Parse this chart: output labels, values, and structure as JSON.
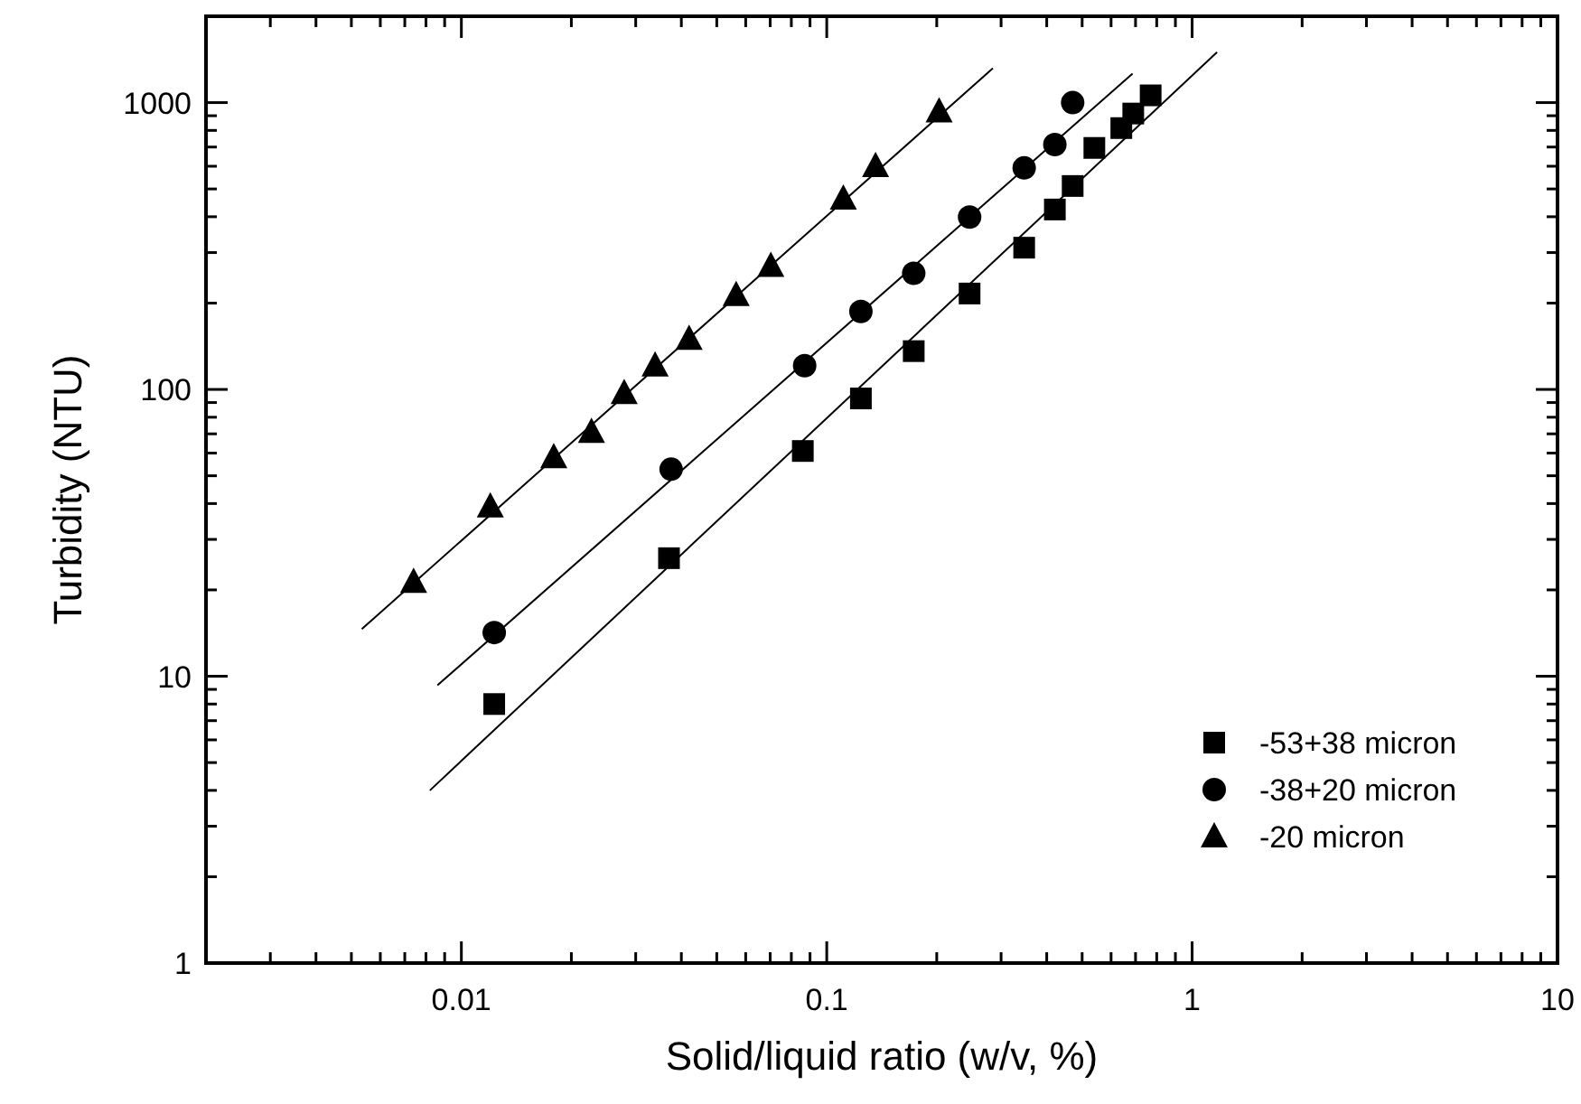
{
  "chart_data": {
    "type": "scatter",
    "xlabel": "Solid/liquid ratio (w/v, %)",
    "ylabel": "Turbidity (NTU)",
    "log": "xy",
    "grid": false,
    "legend": "bottom right",
    "xlim": [
      0.002,
      10
    ],
    "ylim": [
      1,
      2000
    ],
    "xticks": [
      {
        "value": 0.002,
        "label": null
      },
      {
        "value": 0.003,
        "label": null
      },
      {
        "value": 0.004,
        "label": null
      },
      {
        "value": 0.005,
        "label": null
      },
      {
        "value": 0.006,
        "label": null
      },
      {
        "value": 0.007,
        "label": null
      },
      {
        "value": 0.008,
        "label": null
      },
      {
        "value": 0.009,
        "label": null
      },
      0.01,
      {
        "value": 0.02,
        "label": null
      },
      {
        "value": 0.03,
        "label": null
      },
      {
        "value": 0.04,
        "label": null
      },
      {
        "value": 0.05,
        "label": null
      },
      {
        "value": 0.06,
        "label": null
      },
      {
        "value": 0.07,
        "label": null
      },
      {
        "value": 0.08,
        "label": null
      },
      {
        "value": 0.09,
        "label": null
      },
      0.1,
      {
        "value": 0.2,
        "label": null
      },
      {
        "value": 0.3,
        "label": null
      },
      {
        "value": 0.4,
        "label": null
      },
      {
        "value": 0.5,
        "label": null
      },
      {
        "value": 0.6,
        "label": null
      },
      {
        "value": 0.7,
        "label": null
      },
      {
        "value": 0.8,
        "label": null
      },
      {
        "value": 0.9,
        "label": null
      },
      1,
      {
        "value": 2,
        "label": null
      },
      {
        "value": 3,
        "label": null
      },
      {
        "value": 4,
        "label": null
      },
      {
        "value": 5,
        "label": null
      },
      {
        "value": 6,
        "label": null
      },
      {
        "value": 7,
        "label": null
      },
      {
        "value": 8,
        "label": null
      },
      {
        "value": 9,
        "label": null
      },
      10
    ],
    "yticks": [
      1,
      {
        "value": 2,
        "label": null
      },
      {
        "value": 3,
        "label": null
      },
      {
        "value": 4,
        "label": null
      },
      {
        "value": 5,
        "label": null
      },
      {
        "value": 6,
        "label": null
      },
      {
        "value": 7,
        "label": null
      },
      {
        "value": 8,
        "label": null
      },
      {
        "value": 9,
        "label": null
      },
      10,
      {
        "value": 20,
        "label": null
      },
      {
        "value": 30,
        "label": null
      },
      {
        "value": 40,
        "label": null
      },
      {
        "value": 50,
        "label": null
      },
      {
        "value": 60,
        "label": null
      },
      {
        "value": 70,
        "label": null
      },
      {
        "value": 80,
        "label": null
      },
      {
        "value": 90,
        "label": null
      },
      100,
      {
        "value": 200,
        "label": null
      },
      {
        "value": 300,
        "label": null
      },
      {
        "value": 400,
        "label": null
      },
      {
        "value": 500,
        "label": null
      },
      {
        "value": 600,
        "label": null
      },
      {
        "value": 700,
        "label": null
      },
      {
        "value": 800,
        "label": null
      },
      {
        "value": 900,
        "label": null
      },
      1000,
      {
        "value": 2000,
        "label": null
      }
    ],
    "series": [
      {
        "name": "-53+38 micron",
        "color": "#000000",
        "marker": "square",
        "x": [
          0.0123,
          0.037,
          0.086,
          0.124,
          0.173,
          0.246,
          0.347,
          0.421,
          0.471,
          0.54,
          0.64,
          0.69,
          0.77
        ],
        "values": [
          8.0,
          25.8,
          61,
          93,
          136,
          216,
          312,
          424,
          512,
          695,
          815,
          916,
          1060
        ]
      },
      {
        "name": "-38+20 micron",
        "color": "#000000",
        "marker": "circle",
        "x": [
          0.0123,
          0.0375,
          0.087,
          0.124,
          0.173,
          0.246,
          0.347,
          0.421,
          0.471
        ],
        "values": [
          14.2,
          52.7,
          121,
          187,
          254,
          399,
          592,
          714,
          1000
        ]
      },
      {
        "name": "-20 micron",
        "color": "#000000",
        "marker": "triangle",
        "x": [
          0.0074,
          0.012,
          0.0179,
          0.0227,
          0.0279,
          0.0339,
          0.042,
          0.0565,
          0.0703,
          0.111,
          0.136,
          0.203
        ],
        "values": [
          21.3,
          39,
          58,
          71,
          97,
          121,
          150,
          213,
          269,
          462,
          600,
          930
        ]
      },
      {
        "type": "line",
        "color": "#000000",
        "marker": "none",
        "x": [
          0.0082,
          1.17
        ],
        "values": [
          4.0,
          1500
        ]
      },
      {
        "type": "line",
        "color": "#000000",
        "marker": "none",
        "x": [
          0.0086,
          0.687
        ],
        "values": [
          9.3,
          1262
        ]
      },
      {
        "type": "line",
        "color": "#000000",
        "marker": "none",
        "x": [
          0.00534,
          0.285
        ],
        "values": [
          14.6,
          1318
        ]
      }
    ]
  }
}
